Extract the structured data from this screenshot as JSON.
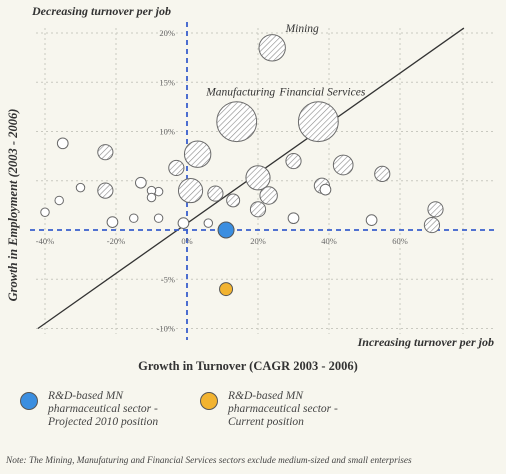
{
  "chart_data": {
    "type": "bubble",
    "title": "",
    "corner_top_left": "Decreasing turnover per job",
    "corner_bottom_right": "Increasing turnover per job",
    "xlabel": "Growth in Turnover (CAGR 2003 - 2006)",
    "ylabel": "Growth in Employment (2003 - 2006)",
    "x_unit": "%",
    "y_unit": "%",
    "xlim": [
      -42,
      78
    ],
    "ylim": [
      -10,
      21
    ],
    "x_ticks": [
      {
        "value": -40,
        "label": "-40%"
      },
      {
        "value": -20,
        "label": "-20%"
      },
      {
        "value": 0,
        "label": "0%"
      },
      {
        "value": 20,
        "label": "20%"
      },
      {
        "value": 40,
        "label": "40%"
      },
      {
        "value": 60,
        "label": "60%"
      }
    ],
    "y_ticks": [
      {
        "value": 20,
        "label": "20%"
      },
      {
        "value": 15,
        "label": "15%"
      },
      {
        "value": 10,
        "label": "10%"
      },
      {
        "value": 5,
        "label": ""
      },
      {
        "value": -5,
        "label": "-5%"
      },
      {
        "value": -10,
        "label": "-10%"
      }
    ],
    "grid": true,
    "reference_line": {
      "style": "solid",
      "from": [
        -42,
        -10
      ],
      "to": [
        78,
        20.5
      ],
      "color": "#333333"
    },
    "origin_lines": {
      "style": "dashed",
      "color": "#3a5fcd",
      "vertical_x": 0,
      "horizontal_y": 0
    },
    "sectors": [
      {
        "x": 24,
        "y": 18.5,
        "size": 10,
        "label": "Mining"
      },
      {
        "x": 14,
        "y": 11,
        "size": 16,
        "label": "Manufacturing"
      },
      {
        "x": 37,
        "y": 11,
        "size": 16,
        "label": "Financial Services"
      },
      {
        "x": 3,
        "y": 7.7,
        "size": 10
      },
      {
        "x": 20,
        "y": 5.3,
        "size": 9
      },
      {
        "x": 1,
        "y": 4,
        "size": 9
      },
      {
        "x": 44,
        "y": 6.6,
        "size": 7
      },
      {
        "x": 55,
        "y": 5.7,
        "size": 5
      },
      {
        "x": 30,
        "y": 7,
        "size": 5
      },
      {
        "x": -23,
        "y": 7.9,
        "size": 5
      },
      {
        "x": -35,
        "y": 8.8,
        "size": 3
      },
      {
        "x": -3,
        "y": 6.3,
        "size": 5
      },
      {
        "x": 23,
        "y": 3.5,
        "size": 6
      },
      {
        "x": 8,
        "y": 3.7,
        "size": 5
      },
      {
        "x": 13,
        "y": 3.0,
        "size": 4
      },
      {
        "x": 38,
        "y": 4.5,
        "size": 5
      },
      {
        "x": 39,
        "y": 4.1,
        "size": 3
      },
      {
        "x": -23,
        "y": 4.0,
        "size": 5
      },
      {
        "x": -13,
        "y": 4.8,
        "size": 3
      },
      {
        "x": -8,
        "y": 3.9,
        "size": 2
      },
      {
        "x": -10,
        "y": 4.0,
        "size": 2
      },
      {
        "x": -30,
        "y": 4.3,
        "size": 2
      },
      {
        "x": -10,
        "y": 3.3,
        "size": 2
      },
      {
        "x": -36,
        "y": 3.0,
        "size": 2
      },
      {
        "x": 20,
        "y": 2.1,
        "size": 5
      },
      {
        "x": -1,
        "y": 0.7,
        "size": 3
      },
      {
        "x": 6,
        "y": 0.7,
        "size": 2
      },
      {
        "x": -21,
        "y": 0.8,
        "size": 3
      },
      {
        "x": -8,
        "y": 1.2,
        "size": 2
      },
      {
        "x": -15,
        "y": 1.2,
        "size": 2
      },
      {
        "x": 30,
        "y": 1.2,
        "size": 3
      },
      {
        "x": 52,
        "y": 1.0,
        "size": 3
      },
      {
        "x": -40,
        "y": 1.8,
        "size": 2
      },
      {
        "x": 70,
        "y": 2.1,
        "size": 5
      },
      {
        "x": 69,
        "y": 0.5,
        "size": 5
      }
    ],
    "series": [
      {
        "name": "R&D-based MN pharmaceutical sector - Projected 2010 position",
        "x": 11,
        "y": 0,
        "color": "#3b8ee0"
      },
      {
        "name": "R&D-based MN pharmaceutical sector - Current position",
        "x": 11,
        "y": -6,
        "color": "#f2b330"
      }
    ]
  },
  "legend": [
    {
      "text": "R&D-based MN\npharmaceutical sector -\nProjected 2010 position",
      "color": "#3b8ee0"
    },
    {
      "text": "R&D-based MN\npharmaceutical sector -\nCurrent position",
      "color": "#f2b330"
    }
  ],
  "note": "Note: The Mining, Manufaturing and Financial Services sectors exclude medium-sized and small enterprises"
}
